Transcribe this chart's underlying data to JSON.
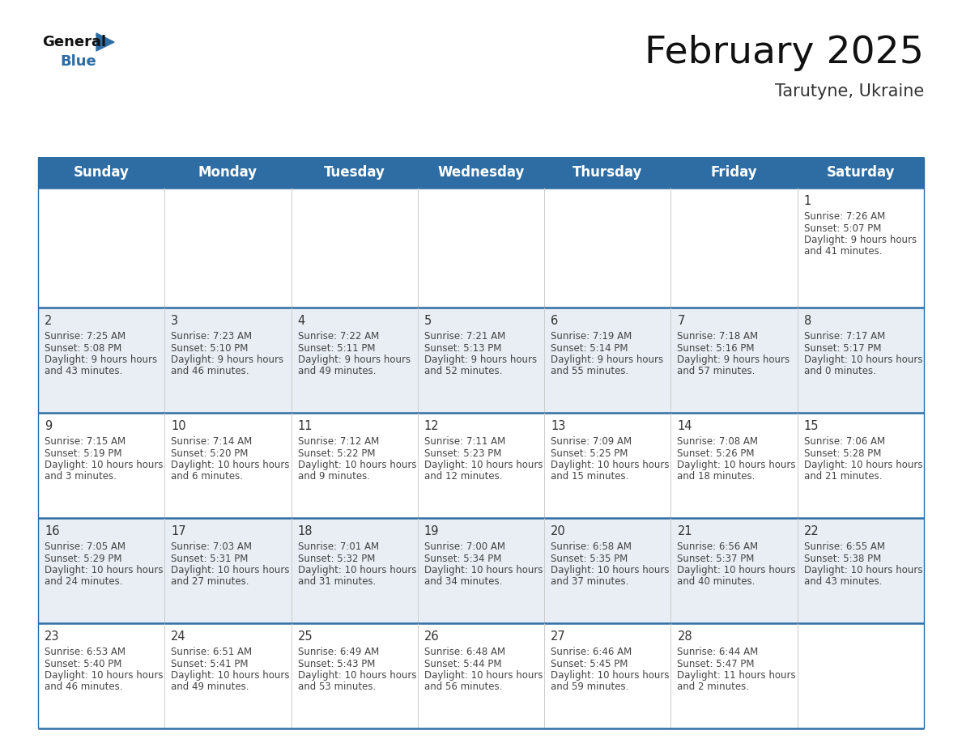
{
  "title": "February 2025",
  "subtitle": "Tarutyne, Ukraine",
  "header_bg": "#2e6da4",
  "header_text_color": "#ffffff",
  "day_names": [
    "Sunday",
    "Monday",
    "Tuesday",
    "Wednesday",
    "Thursday",
    "Friday",
    "Saturday"
  ],
  "title_fontsize": 34,
  "subtitle_fontsize": 15,
  "header_fontsize": 12,
  "cell_fontsize": 8.5,
  "date_fontsize": 10.5,
  "bg_color": "#ffffff",
  "cell_bg_row0": "#e8eef4",
  "cell_bg_odd": "#e8eef4",
  "cell_bg_even": "#ffffff",
  "row_line_color": "#2e6da4",
  "grid_color": "#cccccc",
  "text_color": "#444444",
  "days": [
    {
      "date": 1,
      "row": 0,
      "col": 6,
      "sunrise": "7:26 AM",
      "sunset": "5:07 PM",
      "daylight": "9 hours and 41 minutes."
    },
    {
      "date": 2,
      "row": 1,
      "col": 0,
      "sunrise": "7:25 AM",
      "sunset": "5:08 PM",
      "daylight": "9 hours and 43 minutes."
    },
    {
      "date": 3,
      "row": 1,
      "col": 1,
      "sunrise": "7:23 AM",
      "sunset": "5:10 PM",
      "daylight": "9 hours and 46 minutes."
    },
    {
      "date": 4,
      "row": 1,
      "col": 2,
      "sunrise": "7:22 AM",
      "sunset": "5:11 PM",
      "daylight": "9 hours and 49 minutes."
    },
    {
      "date": 5,
      "row": 1,
      "col": 3,
      "sunrise": "7:21 AM",
      "sunset": "5:13 PM",
      "daylight": "9 hours and 52 minutes."
    },
    {
      "date": 6,
      "row": 1,
      "col": 4,
      "sunrise": "7:19 AM",
      "sunset": "5:14 PM",
      "daylight": "9 hours and 55 minutes."
    },
    {
      "date": 7,
      "row": 1,
      "col": 5,
      "sunrise": "7:18 AM",
      "sunset": "5:16 PM",
      "daylight": "9 hours and 57 minutes."
    },
    {
      "date": 8,
      "row": 1,
      "col": 6,
      "sunrise": "7:17 AM",
      "sunset": "5:17 PM",
      "daylight": "10 hours and 0 minutes."
    },
    {
      "date": 9,
      "row": 2,
      "col": 0,
      "sunrise": "7:15 AM",
      "sunset": "5:19 PM",
      "daylight": "10 hours and 3 minutes."
    },
    {
      "date": 10,
      "row": 2,
      "col": 1,
      "sunrise": "7:14 AM",
      "sunset": "5:20 PM",
      "daylight": "10 hours and 6 minutes."
    },
    {
      "date": 11,
      "row": 2,
      "col": 2,
      "sunrise": "7:12 AM",
      "sunset": "5:22 PM",
      "daylight": "10 hours and 9 minutes."
    },
    {
      "date": 12,
      "row": 2,
      "col": 3,
      "sunrise": "7:11 AM",
      "sunset": "5:23 PM",
      "daylight": "10 hours and 12 minutes."
    },
    {
      "date": 13,
      "row": 2,
      "col": 4,
      "sunrise": "7:09 AM",
      "sunset": "5:25 PM",
      "daylight": "10 hours and 15 minutes."
    },
    {
      "date": 14,
      "row": 2,
      "col": 5,
      "sunrise": "7:08 AM",
      "sunset": "5:26 PM",
      "daylight": "10 hours and 18 minutes."
    },
    {
      "date": 15,
      "row": 2,
      "col": 6,
      "sunrise": "7:06 AM",
      "sunset": "5:28 PM",
      "daylight": "10 hours and 21 minutes."
    },
    {
      "date": 16,
      "row": 3,
      "col": 0,
      "sunrise": "7:05 AM",
      "sunset": "5:29 PM",
      "daylight": "10 hours and 24 minutes."
    },
    {
      "date": 17,
      "row": 3,
      "col": 1,
      "sunrise": "7:03 AM",
      "sunset": "5:31 PM",
      "daylight": "10 hours and 27 minutes."
    },
    {
      "date": 18,
      "row": 3,
      "col": 2,
      "sunrise": "7:01 AM",
      "sunset": "5:32 PM",
      "daylight": "10 hours and 31 minutes."
    },
    {
      "date": 19,
      "row": 3,
      "col": 3,
      "sunrise": "7:00 AM",
      "sunset": "5:34 PM",
      "daylight": "10 hours and 34 minutes."
    },
    {
      "date": 20,
      "row": 3,
      "col": 4,
      "sunrise": "6:58 AM",
      "sunset": "5:35 PM",
      "daylight": "10 hours and 37 minutes."
    },
    {
      "date": 21,
      "row": 3,
      "col": 5,
      "sunrise": "6:56 AM",
      "sunset": "5:37 PM",
      "daylight": "10 hours and 40 minutes."
    },
    {
      "date": 22,
      "row": 3,
      "col": 6,
      "sunrise": "6:55 AM",
      "sunset": "5:38 PM",
      "daylight": "10 hours and 43 minutes."
    },
    {
      "date": 23,
      "row": 4,
      "col": 0,
      "sunrise": "6:53 AM",
      "sunset": "5:40 PM",
      "daylight": "10 hours and 46 minutes."
    },
    {
      "date": 24,
      "row": 4,
      "col": 1,
      "sunrise": "6:51 AM",
      "sunset": "5:41 PM",
      "daylight": "10 hours and 49 minutes."
    },
    {
      "date": 25,
      "row": 4,
      "col": 2,
      "sunrise": "6:49 AM",
      "sunset": "5:43 PM",
      "daylight": "10 hours and 53 minutes."
    },
    {
      "date": 26,
      "row": 4,
      "col": 3,
      "sunrise": "6:48 AM",
      "sunset": "5:44 PM",
      "daylight": "10 hours and 56 minutes."
    },
    {
      "date": 27,
      "row": 4,
      "col": 4,
      "sunrise": "6:46 AM",
      "sunset": "5:45 PM",
      "daylight": "10 hours and 59 minutes."
    },
    {
      "date": 28,
      "row": 4,
      "col": 5,
      "sunrise": "6:44 AM",
      "sunset": "5:47 PM",
      "daylight": "11 hours and 2 minutes."
    }
  ]
}
